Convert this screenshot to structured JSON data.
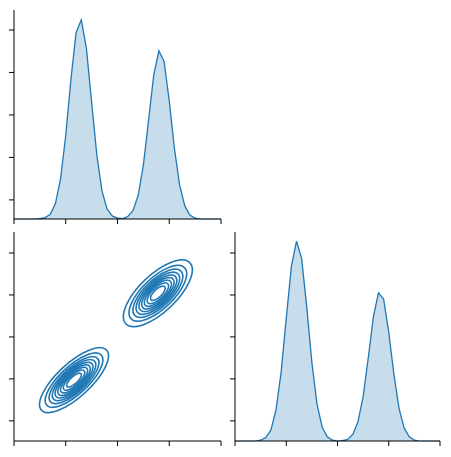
{
  "chart_data": [
    {
      "type": "density",
      "color": "#1f77b4",
      "x": [
        0,
        0.1,
        0.2,
        0.3,
        0.4,
        0.5,
        0.6,
        0.7,
        0.8,
        0.9,
        1,
        1.1,
        1.2,
        1.3,
        1.4,
        1.5,
        1.6,
        1.7,
        1.8,
        1.9,
        2,
        2.1,
        2.2,
        2.3,
        2.4,
        2.5,
        2.6,
        2.7,
        2.8,
        2.9,
        3,
        3.1,
        3.2,
        3.3,
        3.4,
        3.5,
        3.6,
        3.7,
        3.8,
        3.9,
        4
      ],
      "values": [
        0,
        0,
        0,
        0,
        0,
        0.01,
        0.03,
        0.11,
        0.36,
        0.95,
        1.97,
        3.29,
        4.39,
        4.69,
        4.01,
        2.75,
        1.51,
        0.66,
        0.23,
        0.07,
        0.02,
        0.01,
        0.06,
        0.2,
        0.56,
        1.27,
        2.32,
        3.39,
        3.96,
        3.71,
        2.78,
        1.66,
        0.8,
        0.31,
        0.09,
        0.02,
        0,
        0,
        0,
        0,
        0
      ],
      "xlim": [
        0,
        4
      ],
      "xticks": [
        0,
        1,
        2,
        3,
        4
      ],
      "ylim": [
        0,
        4.92
      ],
      "yticks": [
        0.45,
        1.45,
        2.45,
        3.45,
        4.45
      ]
    },
    {
      "type": "contour",
      "color": "#1f77b4",
      "clusters": [
        {
          "x": 1.16,
          "y": 1.45,
          "sx": 0.31,
          "sy": 0.36,
          "rho": 0.75
        },
        {
          "x": 2.78,
          "y": 3.52,
          "sx": 0.31,
          "sy": 0.37,
          "rho": 0.7
        }
      ],
      "levels": [
        0.1,
        0.2,
        0.3,
        0.4,
        0.5,
        0.6,
        0.7,
        0.8,
        0.9
      ],
      "xlim": [
        0,
        4
      ],
      "xticks": [
        0,
        1,
        2,
        3,
        4
      ],
      "ylim": [
        0,
        4.98
      ],
      "yticks": [
        0.48,
        1.48,
        2.48,
        3.48,
        4.48
      ]
    },
    {
      "type": "density",
      "color": "#1f77b4",
      "x": [
        0,
        0.1,
        0.2,
        0.3,
        0.4,
        0.5,
        0.6,
        0.7,
        0.8,
        0.9,
        1,
        1.1,
        1.2,
        1.3,
        1.4,
        1.5,
        1.6,
        1.7,
        1.8,
        1.9,
        2,
        2.1,
        2.2,
        2.3,
        2.4,
        2.5,
        2.6,
        2.7,
        2.8,
        2.9,
        3,
        3.1,
        3.2,
        3.3,
        3.4,
        3.5,
        3.6,
        3.7,
        3.8,
        3.9,
        4
      ],
      "values": [
        0,
        0,
        0,
        0,
        0,
        0.02,
        0.08,
        0.26,
        0.74,
        1.64,
        2.92,
        4.16,
        4.76,
        4.35,
        3.19,
        1.87,
        0.88,
        0.33,
        0.1,
        0.02,
        0,
        0.01,
        0.04,
        0.16,
        0.46,
        1.06,
        1.98,
        2.96,
        3.53,
        3.38,
        2.59,
        1.59,
        0.78,
        0.31,
        0.1,
        0.02,
        0,
        0,
        0,
        0,
        0
      ],
      "xlim": [
        0,
        4
      ],
      "xticks": [
        0,
        1,
        2,
        3,
        4
      ],
      "ylim": [
        0,
        4.98
      ],
      "yticks": [
        0.48,
        1.48,
        2.48,
        3.48,
        4.48
      ]
    }
  ]
}
